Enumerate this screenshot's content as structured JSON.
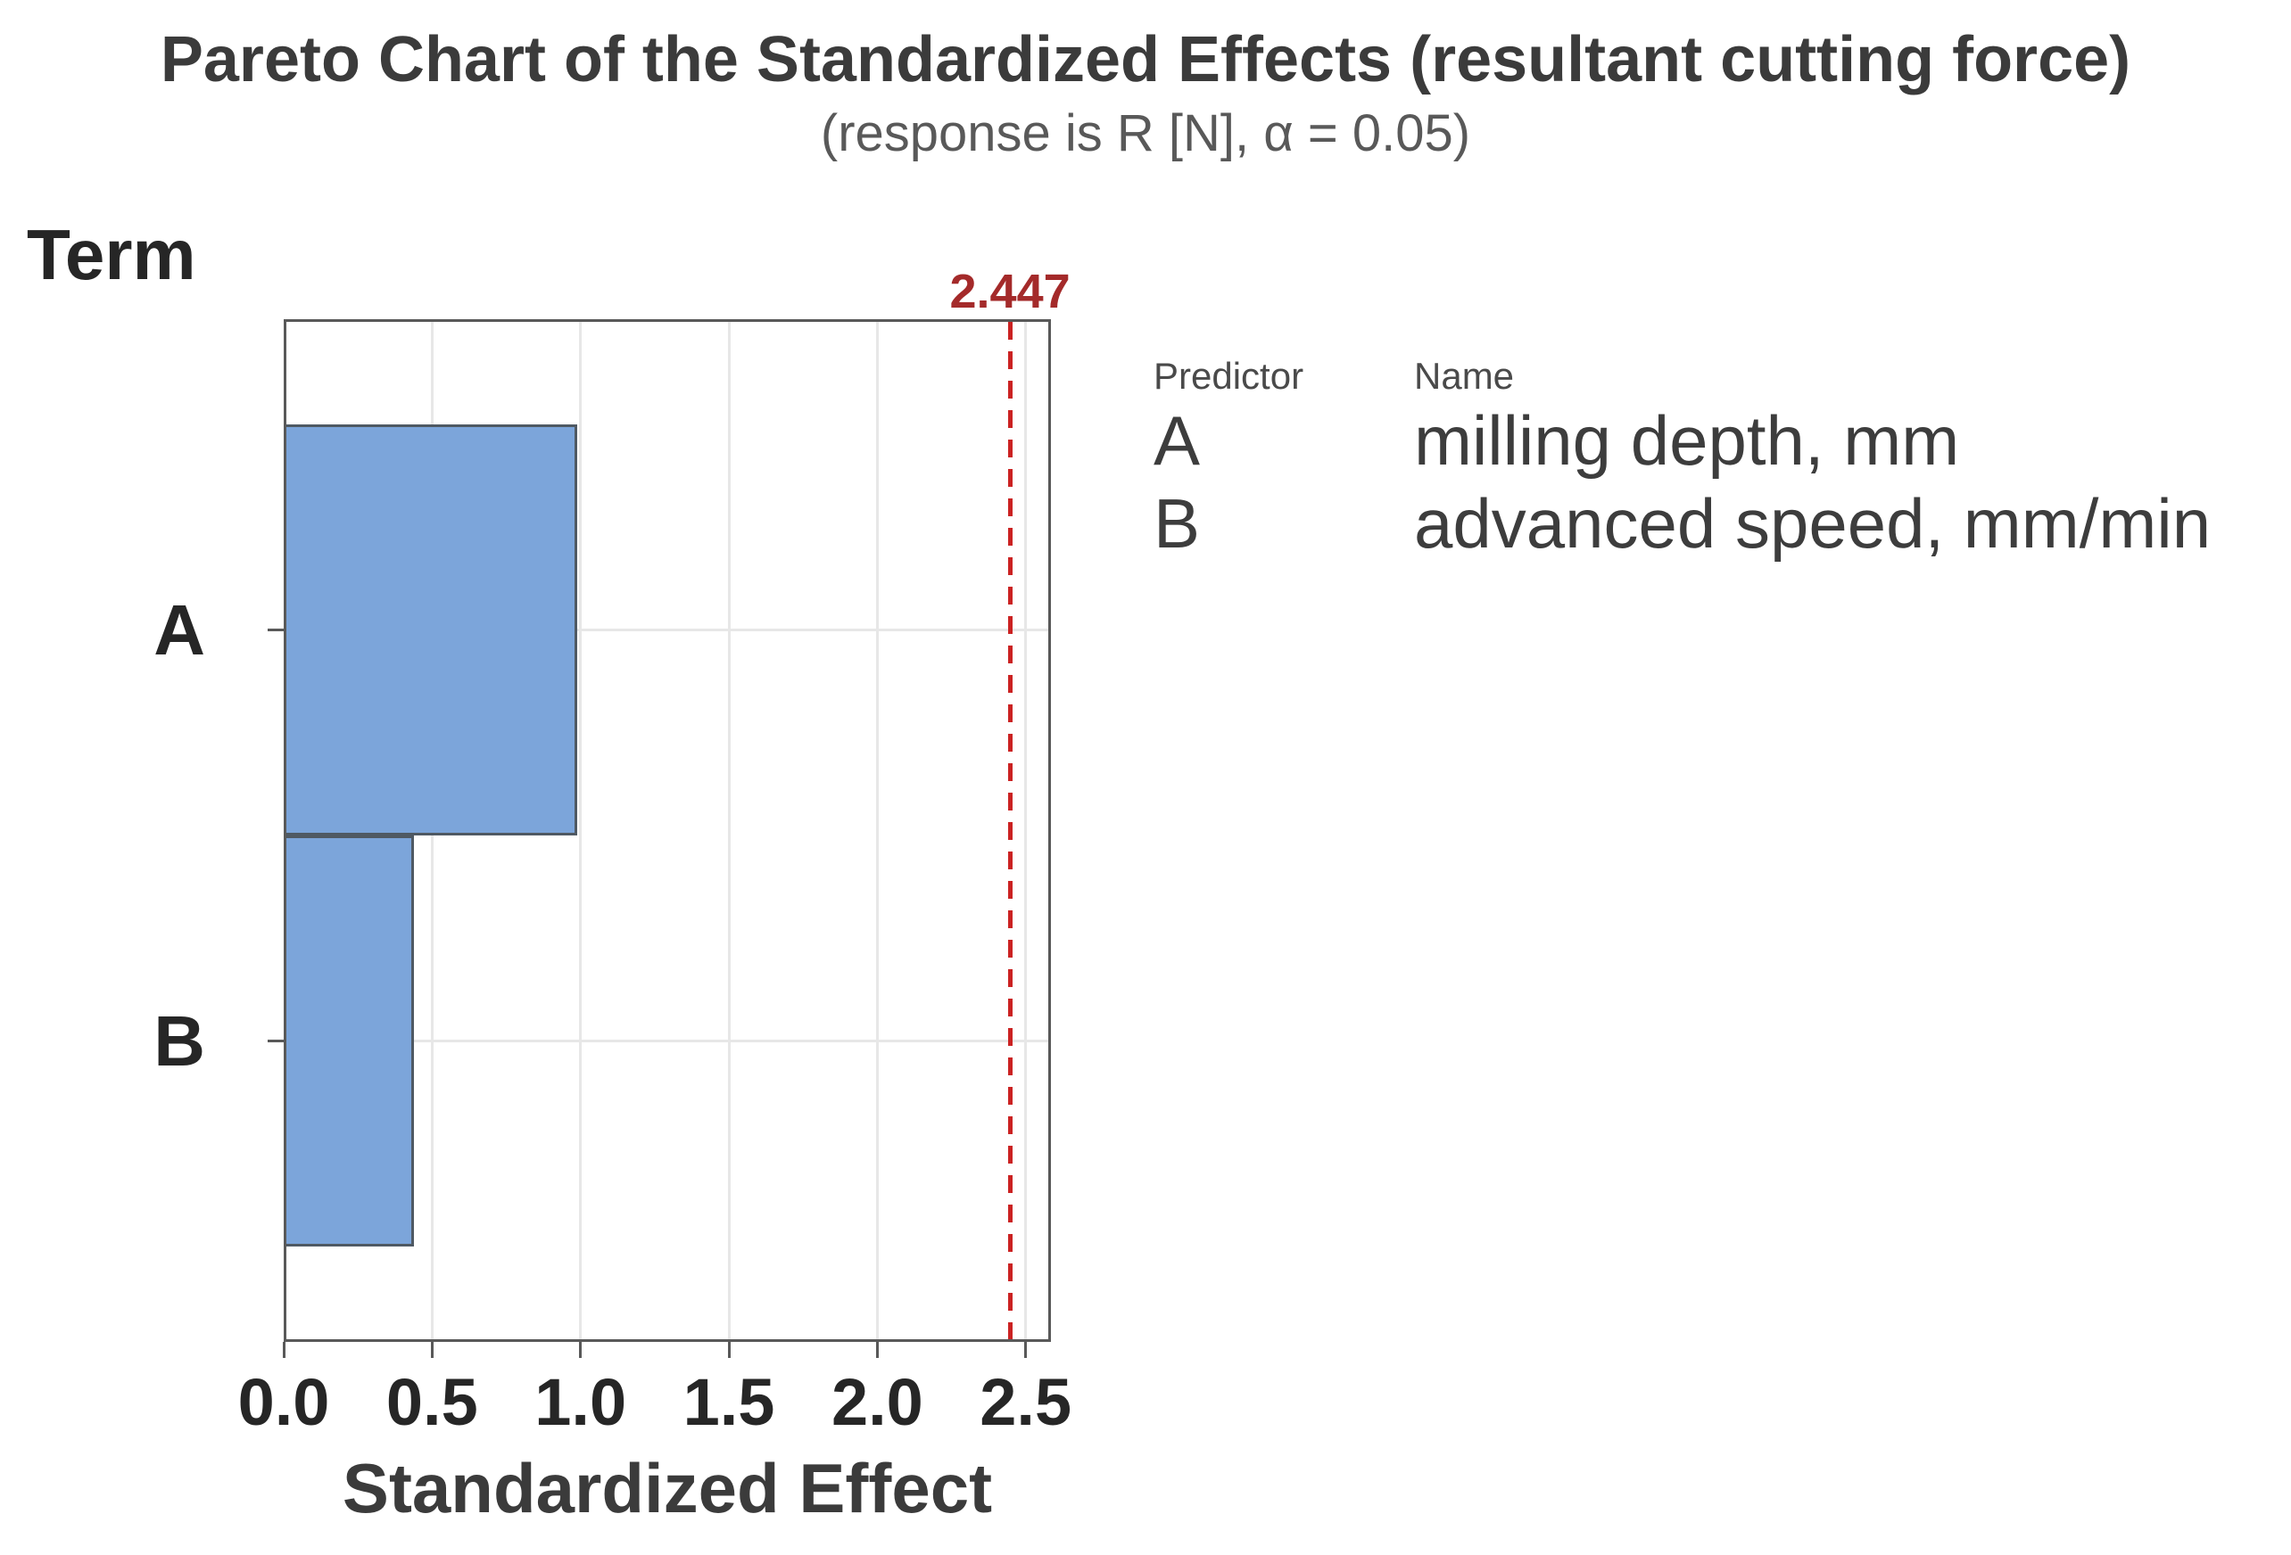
{
  "chart_data": {
    "type": "bar",
    "orientation": "horizontal",
    "title": "Pareto Chart of the Standardized Effects (resultant cutting force)",
    "subtitle": "(response is R [N], α = 0.05)",
    "xlabel": "Standardized Effect",
    "ylabel": "Term",
    "categories": [
      "A",
      "B"
    ],
    "values": [
      0.98,
      0.43
    ],
    "xlim": [
      0,
      2.585
    ],
    "xticks": [
      "0.0",
      "0.5",
      "1.0",
      "1.5",
      "2.0",
      "2.5"
    ],
    "reference_line": 2.447,
    "reference_label": "2.447",
    "grid": "on",
    "legend_position": "right"
  },
  "legend": {
    "headers": [
      "Predictor",
      "Name"
    ],
    "rows": [
      {
        "predictor": "A",
        "name": "milling depth, mm"
      },
      {
        "predictor": "B",
        "name": "advanced speed, mm/min"
      }
    ]
  },
  "colors": {
    "bar_fill": "#7CA5DA",
    "bar_border": "#4F5963",
    "reference_line": "#CB2222",
    "reference_label": "#A42A2A",
    "plot_border": "#595959",
    "gridline": "#E7E7E7",
    "title_text": "#3B3B3B",
    "subtitle_text": "#595959",
    "scale_text": "#262626",
    "legend_text": "#3D3D3D",
    "legend_header_text": "#4A4A4A"
  }
}
